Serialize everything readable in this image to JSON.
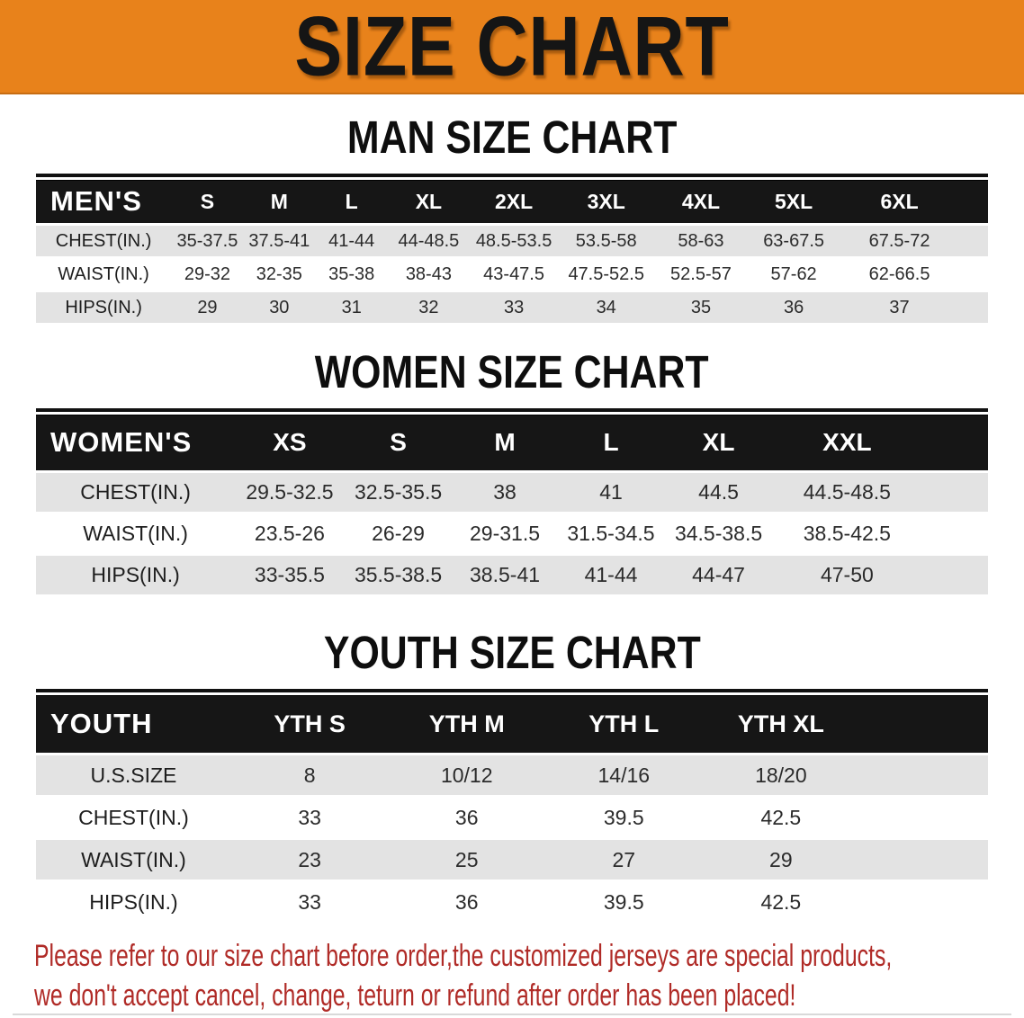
{
  "banner": {
    "title": "SIZE CHART",
    "bg_color": "#E8821B",
    "text_color": "#151515"
  },
  "sections": [
    {
      "id": "men",
      "heading": "MAN SIZE CHART",
      "table": {
        "group_label": "MEN'S",
        "columns": [
          "S",
          "M",
          "L",
          "XL",
          "2XL",
          "3XL",
          "4XL",
          "5XL",
          "6XL"
        ],
        "rows": [
          {
            "label": "CHEST(IN.)",
            "values": [
              "35-37.5",
              "37.5-41",
              "41-44",
              "44-48.5",
              "48.5-53.5",
              "53.5-58",
              "58-63",
              "63-67.5",
              "67.5-72"
            ]
          },
          {
            "label": "WAIST(IN.)",
            "values": [
              "29-32",
              "32-35",
              "35-38",
              "38-43",
              "43-47.5",
              "47.5-52.5",
              "52.5-57",
              "57-62",
              "62-66.5"
            ]
          },
          {
            "label": "HIPS(IN.)",
            "values": [
              "29",
              "30",
              "31",
              "32",
              "33",
              "34",
              "35",
              "36",
              "37"
            ]
          }
        ]
      }
    },
    {
      "id": "women",
      "heading": "WOMEN SIZE CHART",
      "table": {
        "group_label": "WOMEN'S",
        "columns": [
          "XS",
          "S",
          "M",
          "L",
          "XL",
          "XXL"
        ],
        "rows": [
          {
            "label": "CHEST(IN.)",
            "values": [
              "29.5-32.5",
              "32.5-35.5",
              "38",
              "41",
              "44.5",
              "44.5-48.5"
            ]
          },
          {
            "label": "WAIST(IN.)",
            "values": [
              "23.5-26",
              "26-29",
              "29-31.5",
              "31.5-34.5",
              "34.5-38.5",
              "38.5-42.5"
            ]
          },
          {
            "label": "HIPS(IN.)",
            "values": [
              "33-35.5",
              "35.5-38.5",
              "38.5-41",
              "41-44",
              "44-47",
              "47-50"
            ]
          }
        ]
      }
    },
    {
      "id": "youth",
      "heading": "YOUTH SIZE CHART",
      "table": {
        "group_label": "YOUTH",
        "columns": [
          "YTH S",
          "YTH M",
          "YTH L",
          "YTH XL"
        ],
        "rows": [
          {
            "label": "U.S.SIZE",
            "values": [
              "8",
              "10/12",
              "14/16",
              "18/20"
            ]
          },
          {
            "label": "CHEST(IN.)",
            "values": [
              "33",
              "36",
              "39.5",
              "42.5"
            ]
          },
          {
            "label": "WAIST(IN.)",
            "values": [
              "23",
              "25",
              "27",
              "29"
            ]
          },
          {
            "label": "HIPS(IN.)",
            "values": [
              "33",
              "36",
              "39.5",
              "42.5"
            ]
          }
        ]
      }
    }
  ],
  "footer_note": {
    "color": "#B02B27",
    "lines": [
      "Please refer to our size chart before order,the customized jerseys are special products,",
      "we don't accept cancel, change, teturn or refund after order has been placed!"
    ]
  },
  "colors": {
    "banner_orange": "#E8821B",
    "header_bar_black": "#161616",
    "row_shaded_gray": "#e3e3e3",
    "row_plain_white": "#ffffff",
    "footer_red": "#B02B27"
  }
}
